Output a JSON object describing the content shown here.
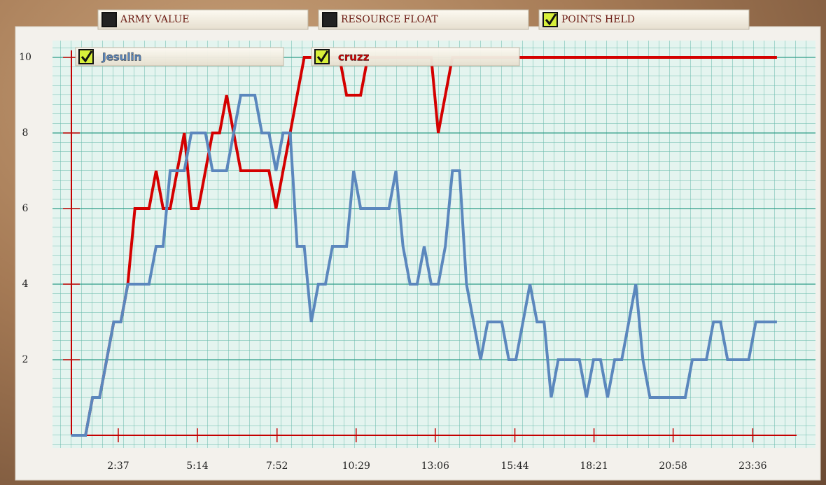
{
  "tabs": [
    {
      "label": "ARMY VALUE",
      "checked": false
    },
    {
      "label": "RESOURCE FLOAT",
      "checked": false
    },
    {
      "label": "POINTS HELD",
      "checked": true
    }
  ],
  "chart_data": {
    "type": "line",
    "x": [
      64,
      78,
      92,
      106,
      120,
      134,
      148,
      162,
      176,
      190,
      204,
      218,
      232,
      246,
      260,
      274,
      288,
      302,
      316,
      330,
      344,
      358,
      372,
      386,
      400,
      414,
      428,
      442,
      456,
      470,
      484,
      498,
      512,
      526,
      540,
      554,
      568,
      582,
      596,
      610,
      624,
      638,
      652,
      666,
      680,
      694,
      708,
      722,
      736,
      750,
      764,
      778,
      792,
      806,
      820,
      834,
      848,
      862,
      876,
      890,
      904,
      918,
      932,
      946,
      960,
      974,
      988,
      1002,
      1016,
      1030,
      1044,
      1058,
      1072,
      1086,
      1100,
      1114,
      1128,
      1142,
      1156,
      1170,
      1184,
      1198,
      1212,
      1226,
      1240,
      1254,
      1268,
      1282,
      1296,
      1310,
      1324,
      1338,
      1352,
      1366,
      1380,
      1394,
      1408,
      1422,
      1436,
      1450,
      1464
    ],
    "series": [
      {
        "name": "Jesulin",
        "color": "#5b87bd",
        "checked": true,
        "values": [
          0,
          0,
          0,
          1,
          1,
          2,
          3,
          3,
          4,
          4,
          4,
          4,
          5,
          5,
          7,
          7,
          7,
          8,
          8,
          8,
          7,
          7,
          7,
          8,
          9,
          9,
          9,
          8,
          8,
          7,
          8,
          8,
          5,
          5,
          3,
          4,
          4,
          5,
          5,
          5,
          7,
          6,
          6,
          6,
          6,
          6,
          7,
          5,
          4,
          4,
          5,
          4,
          4,
          5,
          7,
          7,
          4,
          3,
          2,
          3,
          3,
          3,
          2,
          2,
          3,
          4,
          3,
          3,
          1,
          2,
          2,
          2,
          2,
          1,
          2,
          2,
          1,
          2,
          2,
          3,
          4,
          2,
          1,
          1,
          1,
          1,
          1,
          1,
          2,
          2,
          2,
          3,
          3,
          2,
          2,
          2,
          2,
          3,
          3,
          3,
          3
        ]
      },
      {
        "name": "cruzz",
        "color": "#d40000",
        "checked": true,
        "values": [
          0,
          0,
          0,
          1,
          1,
          2,
          3,
          3,
          4,
          6,
          6,
          6,
          7,
          6,
          6,
          7,
          8,
          6,
          6,
          7,
          8,
          8,
          9,
          8,
          7,
          7,
          7,
          7,
          7,
          6,
          7,
          8,
          9,
          10,
          10,
          10,
          10,
          10,
          10,
          9,
          9,
          9,
          10,
          10,
          10,
          10,
          10,
          10,
          10,
          10,
          10,
          10,
          8,
          9,
          10,
          10,
          10,
          10,
          10,
          10,
          10,
          10,
          10,
          10,
          10,
          10,
          10,
          10,
          10,
          10,
          10,
          10,
          10,
          10,
          10,
          10,
          10,
          10,
          10,
          10,
          10,
          10,
          10,
          10,
          10,
          10,
          10,
          10,
          10,
          10,
          10,
          10,
          10,
          10,
          10,
          10,
          10,
          10,
          10,
          10,
          10
        ]
      }
    ],
    "xlim": [
      64,
      1503
    ],
    "xticks": [
      {
        "value": 157,
        "label": "2:37"
      },
      {
        "value": 314,
        "label": "5:14"
      },
      {
        "value": 472,
        "label": "7:52"
      },
      {
        "value": 629,
        "label": "10:29"
      },
      {
        "value": 786,
        "label": "13:06"
      },
      {
        "value": 944,
        "label": "15:44"
      },
      {
        "value": 1101,
        "label": "18:21"
      },
      {
        "value": 1258,
        "label": "20:58"
      },
      {
        "value": 1416,
        "label": "23:36"
      }
    ],
    "ylim": [
      0,
      10.4
    ],
    "yticks": [
      2,
      4,
      6,
      8,
      10
    ],
    "grid": true,
    "axis_color": "#c40000"
  }
}
